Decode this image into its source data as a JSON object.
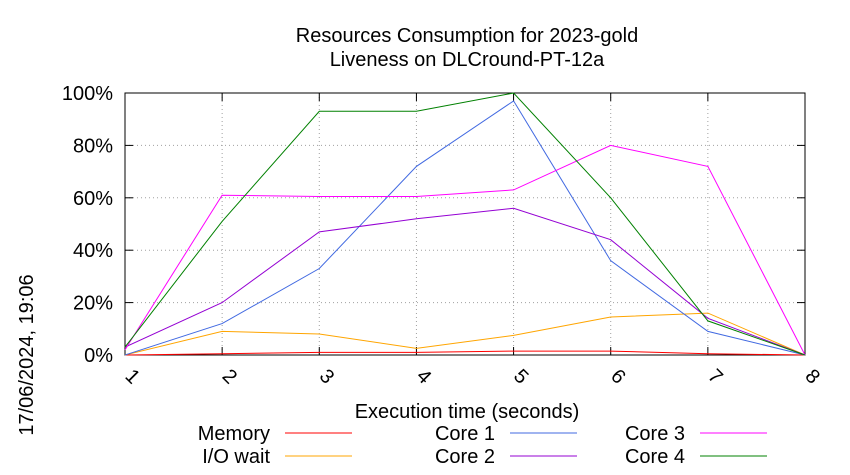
{
  "chart_data": {
    "type": "line",
    "title": [
      "Resources Consumption for 2023-gold",
      "Liveness on DLCround-PT-12a"
    ],
    "xlabel": "Execution time (seconds)",
    "ylabel": "",
    "side_label": "17/06/2024, 19:06",
    "x": [
      1,
      2,
      3,
      4,
      5,
      6,
      7,
      8
    ],
    "xlim": [
      1,
      8
    ],
    "ylim": [
      0,
      100
    ],
    "x_ticks": [
      "1",
      "2",
      "3",
      "4",
      "5",
      "6",
      "7",
      "8"
    ],
    "y_ticks": [
      "0%",
      "20%",
      "40%",
      "60%",
      "80%",
      "100%"
    ],
    "grid": true,
    "legend_position": "bottom",
    "series": [
      {
        "name": "Memory",
        "color": "#ff0000",
        "values": [
          0,
          0.5,
          1,
          1,
          1.5,
          1.5,
          0.5,
          0
        ]
      },
      {
        "name": "I/O wait",
        "color": "#ffa500",
        "values": [
          0,
          9,
          8,
          2.5,
          7.5,
          14.5,
          16,
          0
        ]
      },
      {
        "name": "Core 1",
        "color": "#4169e1",
        "values": [
          0,
          12,
          33,
          72,
          97,
          36,
          9,
          0
        ]
      },
      {
        "name": "Core 2",
        "color": "#9400d3",
        "values": [
          3,
          20,
          47,
          52,
          56,
          44,
          14,
          0
        ]
      },
      {
        "name": "Core 3",
        "color": "#ff00ff",
        "values": [
          2,
          61,
          60.5,
          60.5,
          63,
          80,
          72,
          0
        ]
      },
      {
        "name": "Core 4",
        "color": "#008000",
        "values": [
          3,
          51,
          93,
          93,
          100,
          60,
          13,
          0
        ]
      }
    ]
  }
}
